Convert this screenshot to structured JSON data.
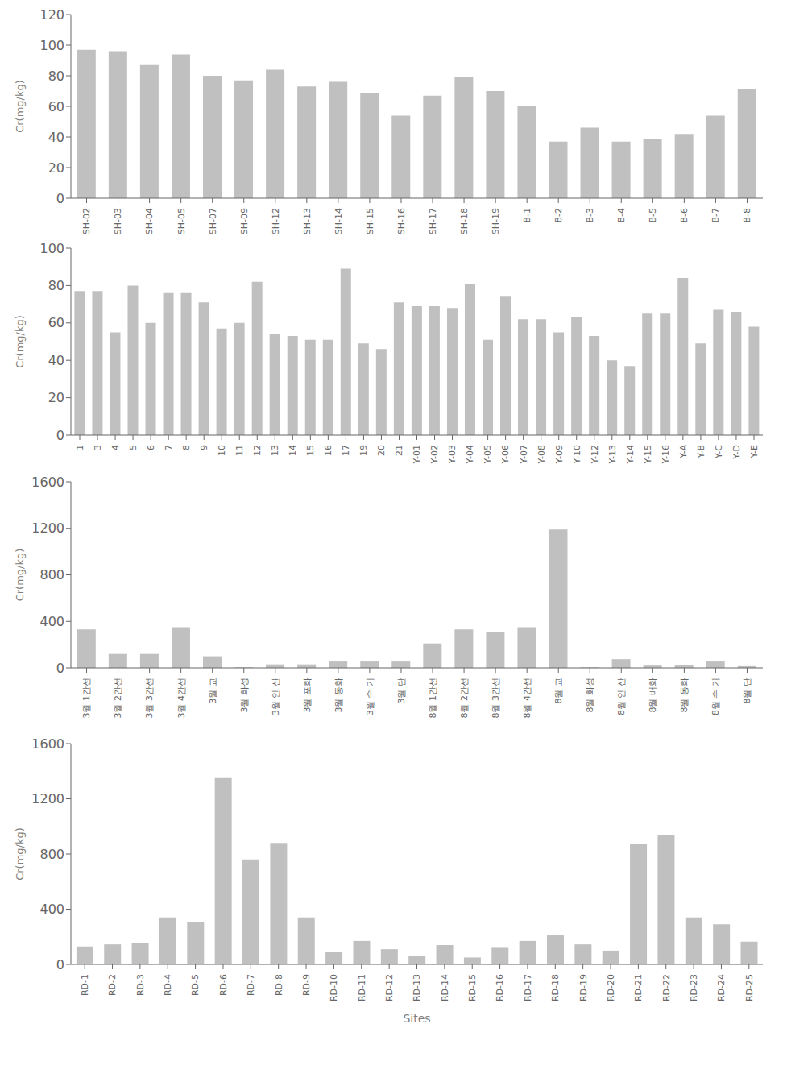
{
  "chart_data": [
    {
      "type": "bar",
      "categories": [
        "SH-02",
        "SH-03",
        "SH-04",
        "SH-05",
        "SH-07",
        "SH-09",
        "SH-12",
        "SH-13",
        "SH-14",
        "SH-15",
        "SH-16",
        "SH-17",
        "SH-18",
        "SH-19",
        "B-1",
        "B-2",
        "B-3",
        "B-4",
        "B-5",
        "B-6",
        "B-7",
        "B-8"
      ],
      "values": [
        97,
        96,
        87,
        94,
        80,
        77,
        84,
        73,
        76,
        69,
        54,
        67,
        79,
        70,
        60,
        37,
        46,
        37,
        39,
        42,
        54,
        71
      ],
      "ylim": [
        0,
        120
      ],
      "yticks": [
        0,
        20,
        40,
        60,
        80,
        100,
        120
      ],
      "color": "#c0c0c0",
      "ylabel": "Cr(mg/kg)",
      "grid": false
    },
    {
      "type": "bar",
      "categories": [
        "1",
        "3",
        "4",
        "5",
        "6",
        "7",
        "8",
        "9",
        "10",
        "11",
        "12",
        "13",
        "14",
        "15",
        "16",
        "17",
        "19",
        "20",
        "21",
        "Y-01",
        "Y-02",
        "Y-03",
        "Y-04",
        "Y-05",
        "Y-06",
        "Y-07",
        "Y-08",
        "Y-09",
        "Y-10",
        "Y-12",
        "Y-13",
        "Y-14",
        "Y-15",
        "Y-16",
        "Y-A",
        "Y-B",
        "Y-C",
        "Y-D",
        "Y-E"
      ],
      "values": [
        77,
        77,
        55,
        80,
        60,
        76,
        76,
        71,
        57,
        60,
        82,
        54,
        53,
        51,
        51,
        89,
        49,
        46,
        71,
        69,
        69,
        68,
        81,
        51,
        74,
        62,
        62,
        55,
        63,
        53,
        40,
        37,
        65,
        65,
        84,
        49,
        67,
        66,
        58
      ],
      "ylim": [
        0,
        100
      ],
      "yticks": [
        0,
        20,
        40,
        60,
        80,
        100
      ],
      "color": "#c0c0c0",
      "ylabel": "Cr(mg/kg)",
      "grid": false
    },
    {
      "type": "bar",
      "categories": [
        "3월 1간선",
        "3월 2간선",
        "3월 3간선",
        "3월 4간선",
        "3월 교",
        "3월 화성",
        "3월 인 산",
        "3월 포화",
        "3월 동화",
        "3월 수 기",
        "3월 단",
        "8월 1간선",
        "8월 2간선",
        "8월 3간선",
        "8월 4간선",
        "8월 교",
        "8월 화성",
        "8월 인 산",
        "8월 배화",
        "8월 동화",
        "8월 수 기",
        "8월 단"
      ],
      "values": [
        330,
        120,
        120,
        350,
        100,
        5,
        30,
        30,
        55,
        55,
        55,
        210,
        330,
        310,
        350,
        1190,
        5,
        75,
        20,
        25,
        55,
        15
      ],
      "ylim": [
        0,
        1600
      ],
      "yticks": [
        0,
        400,
        800,
        1200,
        1600
      ],
      "color": "#c0c0c0",
      "ylabel": "Cr(mg/kg)",
      "grid": false
    },
    {
      "type": "bar",
      "categories": [
        "RD-1",
        "RD-2",
        "RD-3",
        "RD-4",
        "RD-5",
        "RD-6",
        "RD-7",
        "RD-8",
        "RD-9",
        "RD-10",
        "RD-11",
        "RD-12",
        "RD-13",
        "RD-14",
        "RD-15",
        "RD-16",
        "RD-17",
        "RD-18",
        "RD-19",
        "RD-20",
        "RD-21",
        "RD-22",
        "RD-23",
        "RD-24",
        "RD-25"
      ],
      "values": [
        130,
        145,
        155,
        340,
        310,
        1350,
        760,
        880,
        340,
        90,
        170,
        110,
        60,
        140,
        50,
        120,
        170,
        210,
        145,
        100,
        870,
        940,
        340,
        290,
        165
      ],
      "ylim": [
        0,
        1600
      ],
      "yticks": [
        0,
        400,
        800,
        1200,
        1600
      ],
      "color": "#c0c0c0",
      "ylabel": "Cr(mg/kg)",
      "xlabel": "Sites",
      "grid": false
    }
  ]
}
